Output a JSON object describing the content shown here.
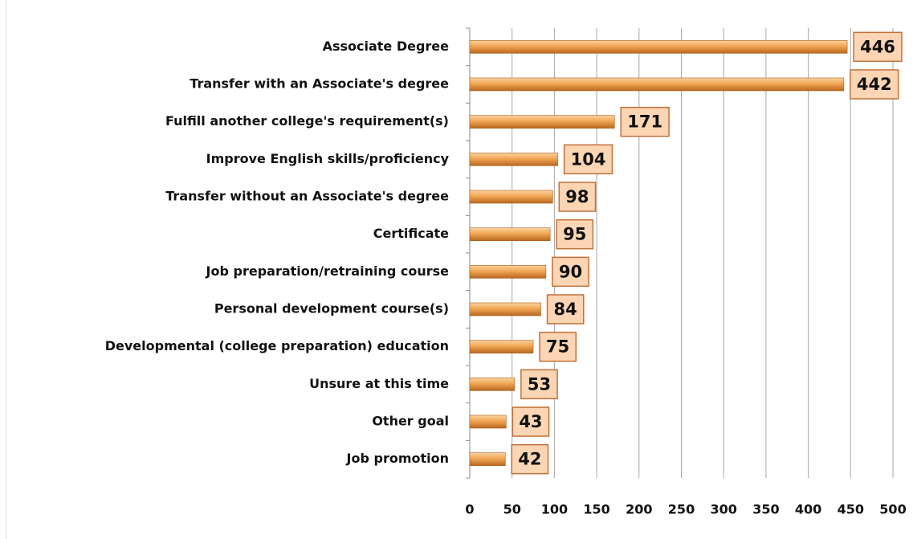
{
  "chart_data": {
    "type": "bar",
    "orientation": "horizontal",
    "categories": [
      "Associate Degree",
      "Transfer with an Associate's degree",
      "Fulfill another college's requirement(s)",
      "Improve English skills/proficiency",
      "Transfer without an Associate's degree",
      "Certificate",
      "Job preparation/retraining course",
      "Personal development course(s)",
      "Developmental (college preparation) education",
      "Unsure at this time",
      "Other goal",
      "Job promotion"
    ],
    "values": [
      446,
      442,
      171,
      104,
      98,
      95,
      90,
      84,
      75,
      53,
      43,
      42
    ],
    "color": "#e8963a",
    "xlim": [
      0,
      500
    ],
    "xticks": [
      0,
      50,
      100,
      150,
      200,
      250,
      300,
      350,
      400,
      450,
      500
    ],
    "grid": true
  }
}
